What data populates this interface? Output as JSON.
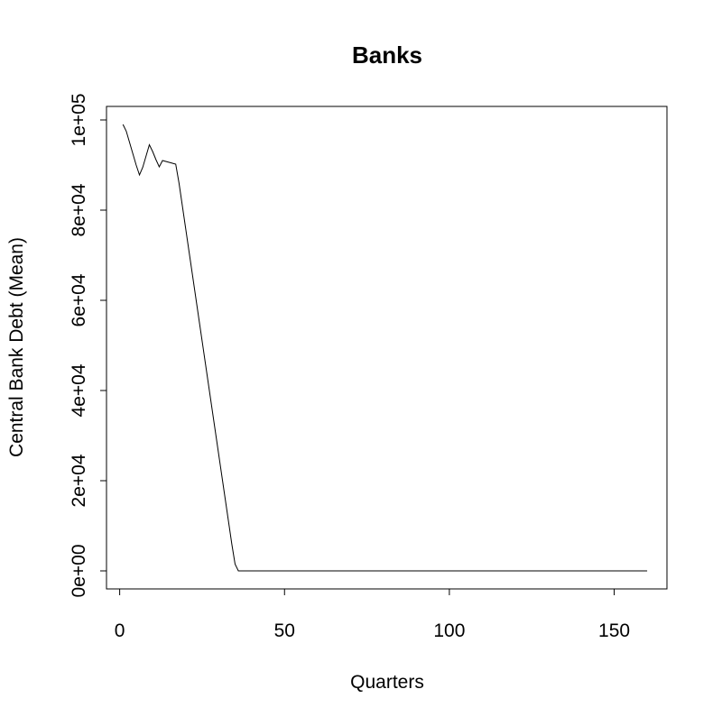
{
  "colors": {
    "line": "#000000",
    "axis": "#000000",
    "background": "#ffffff"
  },
  "chart_data": {
    "type": "line",
    "title": "Banks",
    "xlabel": "Quarters",
    "ylabel": "Central Bank Debt (Mean)",
    "xlim": [
      -4,
      166
    ],
    "ylim": [
      -4000,
      103000
    ],
    "grid": false,
    "legend": "none",
    "x_ticks": [
      {
        "value": 0,
        "label": "0"
      },
      {
        "value": 50,
        "label": "50"
      },
      {
        "value": 100,
        "label": "100"
      },
      {
        "value": 150,
        "label": "150"
      }
    ],
    "y_ticks": [
      {
        "value": 0,
        "label": "0e+00"
      },
      {
        "value": 20000,
        "label": "2e+04"
      },
      {
        "value": 40000,
        "label": "4e+04"
      },
      {
        "value": 60000,
        "label": "6e+04"
      },
      {
        "value": 80000,
        "label": "8e+04"
      },
      {
        "value": 100000,
        "label": "1e+05"
      }
    ],
    "series": [
      {
        "x": [
          1,
          2,
          3,
          4,
          5,
          6,
          7,
          8,
          9,
          10,
          11,
          12,
          13,
          14,
          15,
          16,
          17,
          18,
          19,
          20,
          21,
          22,
          23,
          24,
          25,
          26,
          27,
          28,
          29,
          30,
          31,
          32,
          33,
          34,
          35,
          36,
          37,
          38,
          39,
          40,
          50,
          60,
          70,
          80,
          90,
          100,
          110,
          120,
          130,
          140,
          150,
          160
        ],
        "y": [
          99000,
          97500,
          95000,
          92500,
          90000,
          87800,
          89500,
          92000,
          94500,
          93000,
          91200,
          89600,
          91000,
          90800,
          90600,
          90400,
          90200,
          86000,
          81000,
          76000,
          71000,
          66000,
          61000,
          56000,
          51000,
          46000,
          41000,
          36000,
          31000,
          26000,
          21000,
          16000,
          11000,
          6000,
          1500,
          0,
          0,
          0,
          0,
          0,
          0,
          0,
          0,
          0,
          0,
          0,
          0,
          0,
          0,
          0,
          0,
          0
        ]
      }
    ]
  }
}
